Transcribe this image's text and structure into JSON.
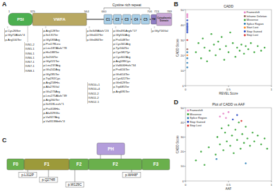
{
  "panels": {
    "a": {
      "label": "A",
      "repeat_label": "Cystine rich repeat",
      "domains": [
        {
          "name": "PSI",
          "color": "#4caf50"
        },
        {
          "name": "VWFA",
          "color": "#b8a862"
        },
        {
          "name": "C1",
          "color": "#a9cfe8"
        },
        {
          "name": "C2",
          "color": "#a9cfe8"
        },
        {
          "name": "C3",
          "color": "#a9cfe8"
        },
        {
          "name": "C4",
          "color": "#a9cfe8"
        },
        {
          "name": "C5",
          "color": "#a9cfe8"
        },
        {
          "name": "TM",
          "color": "#8e7cc3"
        },
        {
          "name": "Cytoplasmic Domain",
          "color": "#c9a7d6"
        }
      ],
      "positions": [
        1,
        325,
        564,
        660,
        706,
        723,
        789
      ],
      "mutation_groups": [
        [
          "p.Cys26Ser",
          "p.Gly72Alafs*4",
          "p.Arg100Ter"
        ],
        [
          "IVS1-2",
          "IVS5-1",
          "IVS6-1",
          "IVS6-1",
          "IVS7-1",
          "IVS7-1",
          "IVS8-1"
        ],
        [
          "p.Arg128Ter",
          "p.Ile131Ter",
          "p.Gly183Arg",
          "p.Pro178Leu",
          "p.Leu187Alafs*78",
          "p.His188Ter",
          "p.Ile206Ter",
          "p.Gly221Ter",
          "p.Leu237Arg",
          "p.Glu242Arg",
          "p.Gly285Ter",
          "p.Trp292Cys",
          "p.Arg258His",
          "p.Ala276Val",
          "p.Glu273Arg",
          "p.Leu275Alafs*39",
          "p.Arg260Ter",
          "p.Ile318Leufs*1",
          "p.Pro318His",
          "p.Ala329Glu",
          "p.Val327Arg",
          "p.Val313Metfs*4"
        ],
        [
          "p.Ile349Alafs*23",
          "p.Gln422Ter",
          "p.Gln484Ter"
        ],
        [
          "IVS10+1",
          "IVS10+4",
          "IVS11-2",
          "IVS11-2",
          "IVS12-1"
        ],
        [
          "p.Gln491Argfs*17",
          "p.Gly550Arg",
          "p.Pro548Ter",
          "p.Cys561Arg",
          "p.Tyr564Ter",
          "p.Cys582Tyr",
          "p.Cys602Arg",
          "p.Arg599Cys",
          "p.Val606Hisfs*34",
          "p.Pro616Ter",
          "p.Glu614Ter",
          "p.Cys622Ter",
          "p.Gln629Ter",
          "p.Trp685Ter",
          "p.Arg695Ter"
        ],
        [
          "p.Gly716Val"
        ]
      ]
    },
    "c": {
      "label": "C",
      "domains": [
        {
          "name": "F0",
          "color": "#6ab04c"
        },
        {
          "name": "F1",
          "color": "#9c9a3a"
        },
        {
          "name": "F2",
          "color": "#6ab04c"
        },
        {
          "name": "PH",
          "color": "#b39ddb"
        },
        {
          "name": "F2",
          "color": "#6ab04c"
        },
        {
          "name": "F3",
          "color": "#6ab04c"
        }
      ],
      "mutations": [
        "p.L312P",
        "p.Q274R",
        "p.W129C",
        "p.W448*"
      ]
    },
    "b": {
      "label": "B"
    },
    "d": {
      "label": "D"
    }
  },
  "chart_data": [
    {
      "type": "scatter",
      "title": "CADD",
      "x_label": "REVEL Score",
      "y_label": "CADD Score",
      "xlim": [
        0,
        1
      ],
      "ylim": [
        0,
        50
      ],
      "xticks": [
        0,
        0.5,
        1
      ],
      "yticks": [
        0,
        10,
        20,
        30,
        40,
        50
      ],
      "grid": false,
      "legend": "upper right",
      "series": [
        {
          "name": "Frameshift",
          "color": "#e377c2",
          "x": [
            0.02,
            0.02,
            0.02
          ],
          "values": [
            45,
            47,
            46
          ]
        },
        {
          "name": "Inframe Deletion",
          "color": "#8c564b",
          "x": [
            0.02
          ],
          "values": [
            24
          ]
        },
        {
          "name": "Missense",
          "color": "#2ca02c",
          "x": [
            0.12,
            0.15,
            0.18,
            0.2,
            0.22,
            0.25,
            0.28,
            0.3,
            0.33,
            0.35,
            0.38,
            0.4,
            0.42,
            0.45,
            0.47,
            0.5,
            0.52,
            0.55,
            0.58,
            0.6,
            0.63,
            0.65,
            0.68,
            0.7,
            0.73,
            0.76,
            0.8,
            0.84,
            0.88,
            0.92
          ],
          "values": [
            22,
            28,
            18,
            31,
            25,
            16,
            23,
            34,
            27,
            20,
            29,
            24,
            32,
            17,
            26,
            22,
            35,
            28,
            19,
            25,
            23,
            27,
            21,
            26,
            24,
            28,
            22,
            26,
            23,
            25
          ]
        },
        {
          "name": "Splice Region",
          "color": "#1f77b4",
          "x": [
            0.02,
            0.02,
            0.02,
            0.02
          ],
          "values": [
            12,
            18,
            22,
            15
          ]
        },
        {
          "name": "Start Lost",
          "color": "#ff7f0e",
          "x": [
            0.02
          ],
          "values": [
            20
          ]
        },
        {
          "name": "Stop Gained",
          "color": "#1f3fbf",
          "x": [
            0.02,
            0.02,
            0.02,
            0.02,
            0.02,
            0.02,
            0.02,
            0.02
          ],
          "values": [
            35,
            36,
            37,
            38,
            39,
            40,
            41,
            43
          ]
        },
        {
          "name": "Stop Lost",
          "color": "#d62728",
          "x": [
            0.02
          ],
          "values": [
            30
          ]
        }
      ]
    },
    {
      "type": "scatter",
      "title": "Plot of CADD vs AAF",
      "x_label": "AAF",
      "y_label": "CADD Score",
      "xlim": [
        0,
        1
      ],
      "ylim": [
        0,
        50
      ],
      "xticks": [
        0,
        0.5,
        1
      ],
      "yticks": [
        0,
        10,
        20,
        30,
        40,
        50
      ],
      "grid": false,
      "legend": "upper left",
      "series": [
        {
          "name": "Frameshift",
          "color": "#e377c2",
          "x": [
            0.4,
            0.44,
            0.47,
            0.5
          ],
          "values": [
            44,
            46,
            43,
            47
          ]
        },
        {
          "name": "Missense",
          "color": "#2ca02c",
          "x": [
            0.12,
            0.18,
            0.22,
            0.27,
            0.35,
            0.37,
            0.4,
            0.42,
            0.44,
            0.46,
            0.48,
            0.5,
            0.52,
            0.54,
            0.56,
            0.58,
            0.6,
            0.62,
            0.64,
            0.66,
            0.68,
            0.7,
            0.72,
            0.75,
            0.78,
            0.8,
            0.84,
            0.88,
            0.92,
            0.95
          ],
          "values": [
            14,
            20,
            11,
            23,
            18,
            30,
            25,
            36,
            21,
            33,
            27,
            38,
            24,
            31,
            19,
            35,
            28,
            40,
            22,
            32,
            26,
            37,
            29,
            24,
            33,
            27,
            31,
            25,
            29,
            22
          ]
        },
        {
          "name": "Splice Region",
          "color": "#1f77b4",
          "x": [
            0.36,
            0.7
          ],
          "values": [
            15,
            12
          ]
        },
        {
          "name": "Stop Gained",
          "color": "#1f3fbf",
          "x": [
            0.55,
            0.6
          ],
          "values": [
            42,
            45
          ]
        },
        {
          "name": "Stop Lost",
          "color": "#d62728",
          "x": [
            0.65
          ],
          "values": [
            41
          ]
        }
      ]
    }
  ]
}
